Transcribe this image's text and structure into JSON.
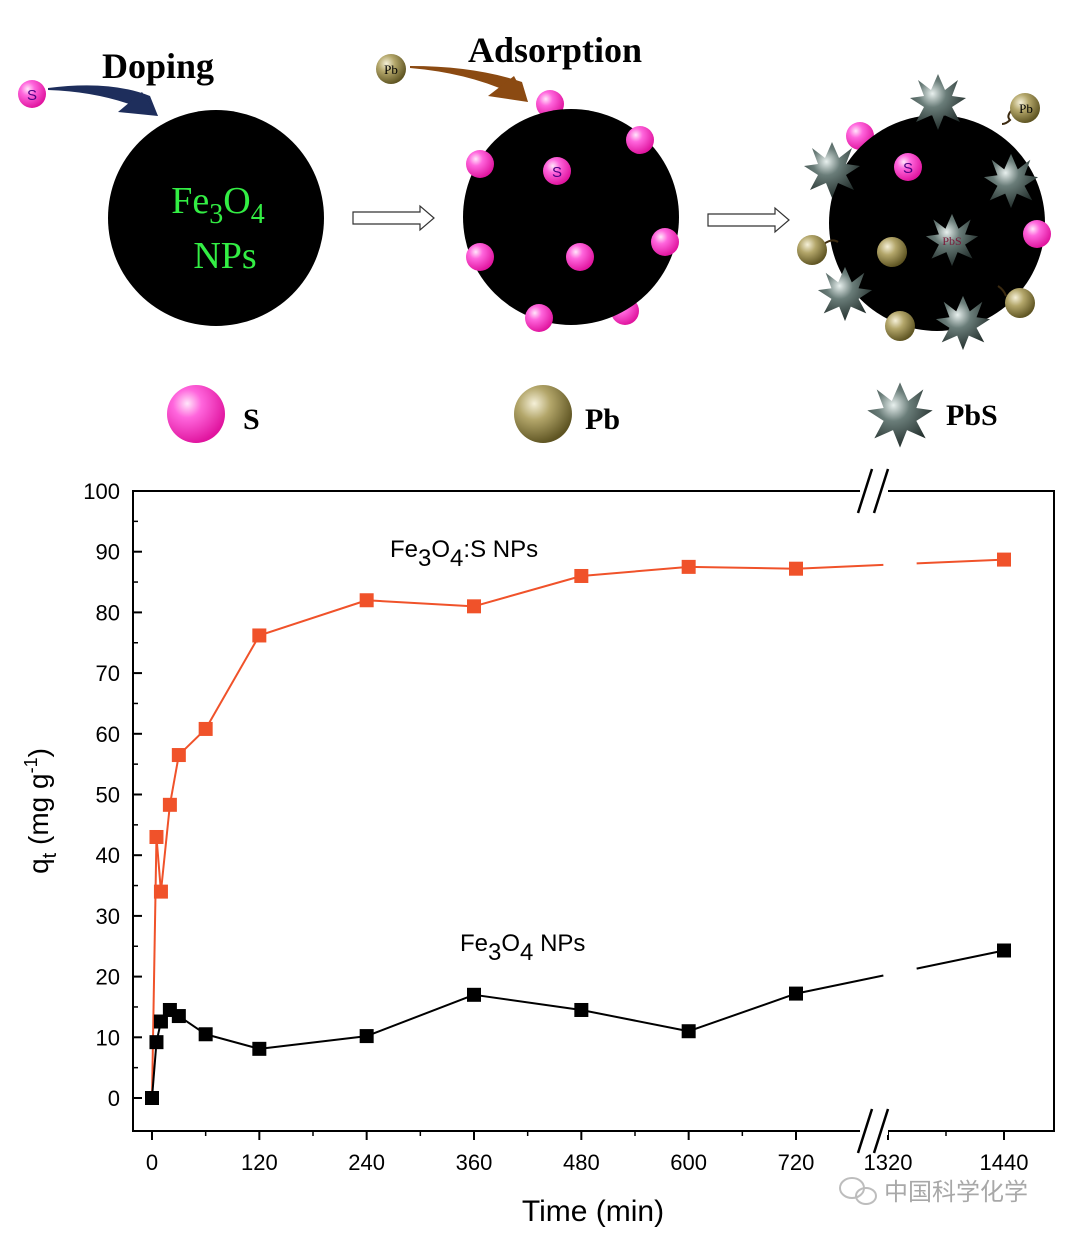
{
  "schematic": {
    "step1_label": "Doping",
    "step2_label": "Adsorption",
    "core_formula": "Fe",
    "core_sub1": "3",
    "core_o": "O",
    "core_sub2": "4",
    "core_nps": "NPs",
    "atom_s": "S",
    "atom_pb": "Pb",
    "pbs_label": "PbS",
    "legend": [
      {
        "key": "s",
        "label": "S"
      },
      {
        "key": "pb",
        "label": "Pb"
      },
      {
        "key": "pbs",
        "label": "PbS"
      }
    ]
  },
  "colors": {
    "sulfur_magenta": "#ff33cc",
    "lead_gold": "#8a7d3c",
    "pbs_dark": "#2d3a38",
    "arrow_navy": "#1e2e5c",
    "arrow_brown": "#8b4a12",
    "core_text_green": "#33ee44",
    "series_s": "#f0522a",
    "series_plain": "#000000"
  },
  "chart_data": {
    "type": "line",
    "xlabel": "Time (min)",
    "ylabel": "q",
    "ylabel_sub": "t",
    "ylabel_unit": " (mg g",
    "ylabel_sup": "-1",
    "ylabel_close": ")",
    "ylim": [
      0,
      100
    ],
    "yticks": [
      0,
      10,
      20,
      30,
      40,
      50,
      60,
      70,
      80,
      90,
      100
    ],
    "xticks": [
      0,
      120,
      240,
      360,
      480,
      600,
      720,
      1320,
      1440
    ],
    "x_axis_break": [
      780,
      1300
    ],
    "series": [
      {
        "name": "Fe3O4:S NPs",
        "label_parts": [
          "Fe",
          "3",
          "O",
          "4",
          ":S NPs"
        ],
        "color": "#f0522a",
        "x": [
          0,
          5,
          10,
          20,
          30,
          60,
          120,
          240,
          360,
          480,
          600,
          720,
          1440
        ],
        "values": [
          0,
          43,
          34,
          48.3,
          56.5,
          60.8,
          76.2,
          82,
          81,
          86,
          87.5,
          87.2,
          88.7
        ]
      },
      {
        "name": "Fe3O4 NPs",
        "label_parts": [
          "Fe",
          "3",
          "O",
          "4",
          " NPs"
        ],
        "color": "#000000",
        "x": [
          0,
          5,
          10,
          20,
          30,
          60,
          120,
          240,
          360,
          480,
          600,
          720,
          1440
        ],
        "values": [
          0,
          9.2,
          12.6,
          14.5,
          13.5,
          10.5,
          8.1,
          10.2,
          17,
          14.5,
          11,
          17.2,
          24.3
        ]
      }
    ]
  },
  "watermark": "中国科学化学"
}
